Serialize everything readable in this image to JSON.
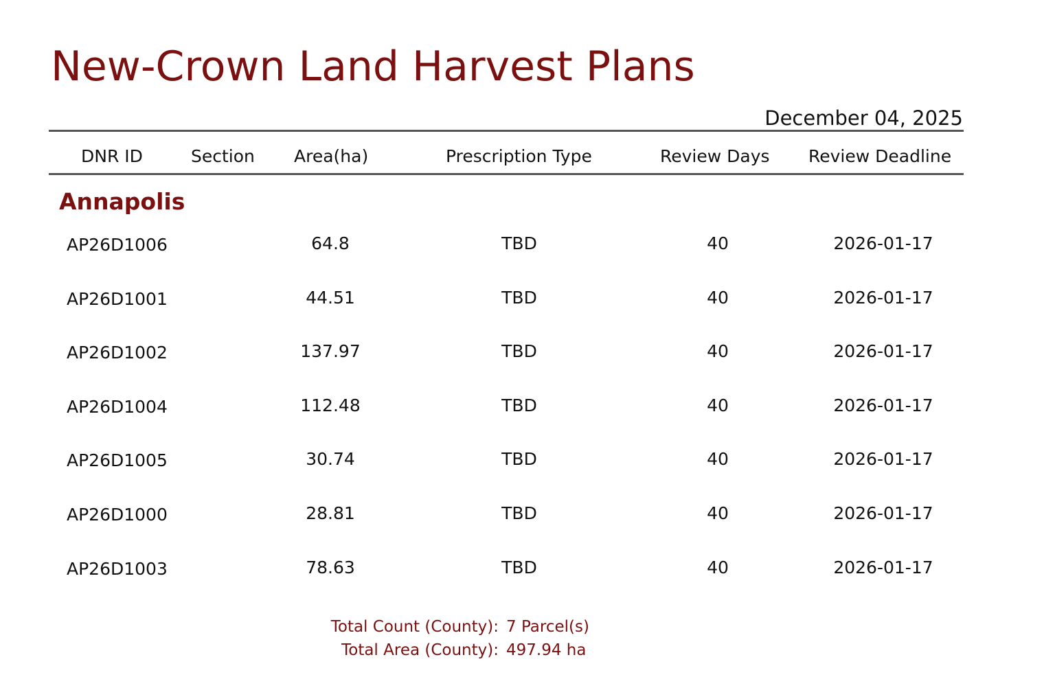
{
  "report": {
    "title": "New-Crown Land Harvest Plans",
    "date": "December 04, 2025"
  },
  "columns": {
    "dnr_id": "DNR ID",
    "section": "Section",
    "area": "Area(ha)",
    "prescription": "Prescription Type",
    "review_days": "Review Days",
    "review_deadline": "Review Deadline"
  },
  "group": {
    "name": "Annapolis",
    "rows": [
      {
        "dnr_id": "AP26D1006",
        "section": "",
        "area": "64.8",
        "prescription": "TBD",
        "review_days": "40",
        "review_deadline": "2026-01-17"
      },
      {
        "dnr_id": "AP26D1001",
        "section": "",
        "area": "44.51",
        "prescription": "TBD",
        "review_days": "40",
        "review_deadline": "2026-01-17"
      },
      {
        "dnr_id": "AP26D1002",
        "section": "",
        "area": "137.97",
        "prescription": "TBD",
        "review_days": "40",
        "review_deadline": "2026-01-17"
      },
      {
        "dnr_id": "AP26D1004",
        "section": "",
        "area": "112.48",
        "prescription": "TBD",
        "review_days": "40",
        "review_deadline": "2026-01-17"
      },
      {
        "dnr_id": "AP26D1005",
        "section": "",
        "area": "30.74",
        "prescription": "TBD",
        "review_days": "40",
        "review_deadline": "2026-01-17"
      },
      {
        "dnr_id": "AP26D1000",
        "section": "",
        "area": "28.81",
        "prescription": "TBD",
        "review_days": "40",
        "review_deadline": "2026-01-17"
      },
      {
        "dnr_id": "AP26D1003",
        "section": "",
        "area": "78.63",
        "prescription": "TBD",
        "review_days": "40",
        "review_deadline": "2026-01-17"
      }
    ],
    "totals": {
      "count_label": "Total Count (County):",
      "count_value": "7 Parcel(s)",
      "area_label": "Total Area (County):",
      "area_value": "497.94 ha"
    }
  },
  "colors": {
    "accent": "#7a1010",
    "rule": "#555555",
    "text": "#111111"
  }
}
